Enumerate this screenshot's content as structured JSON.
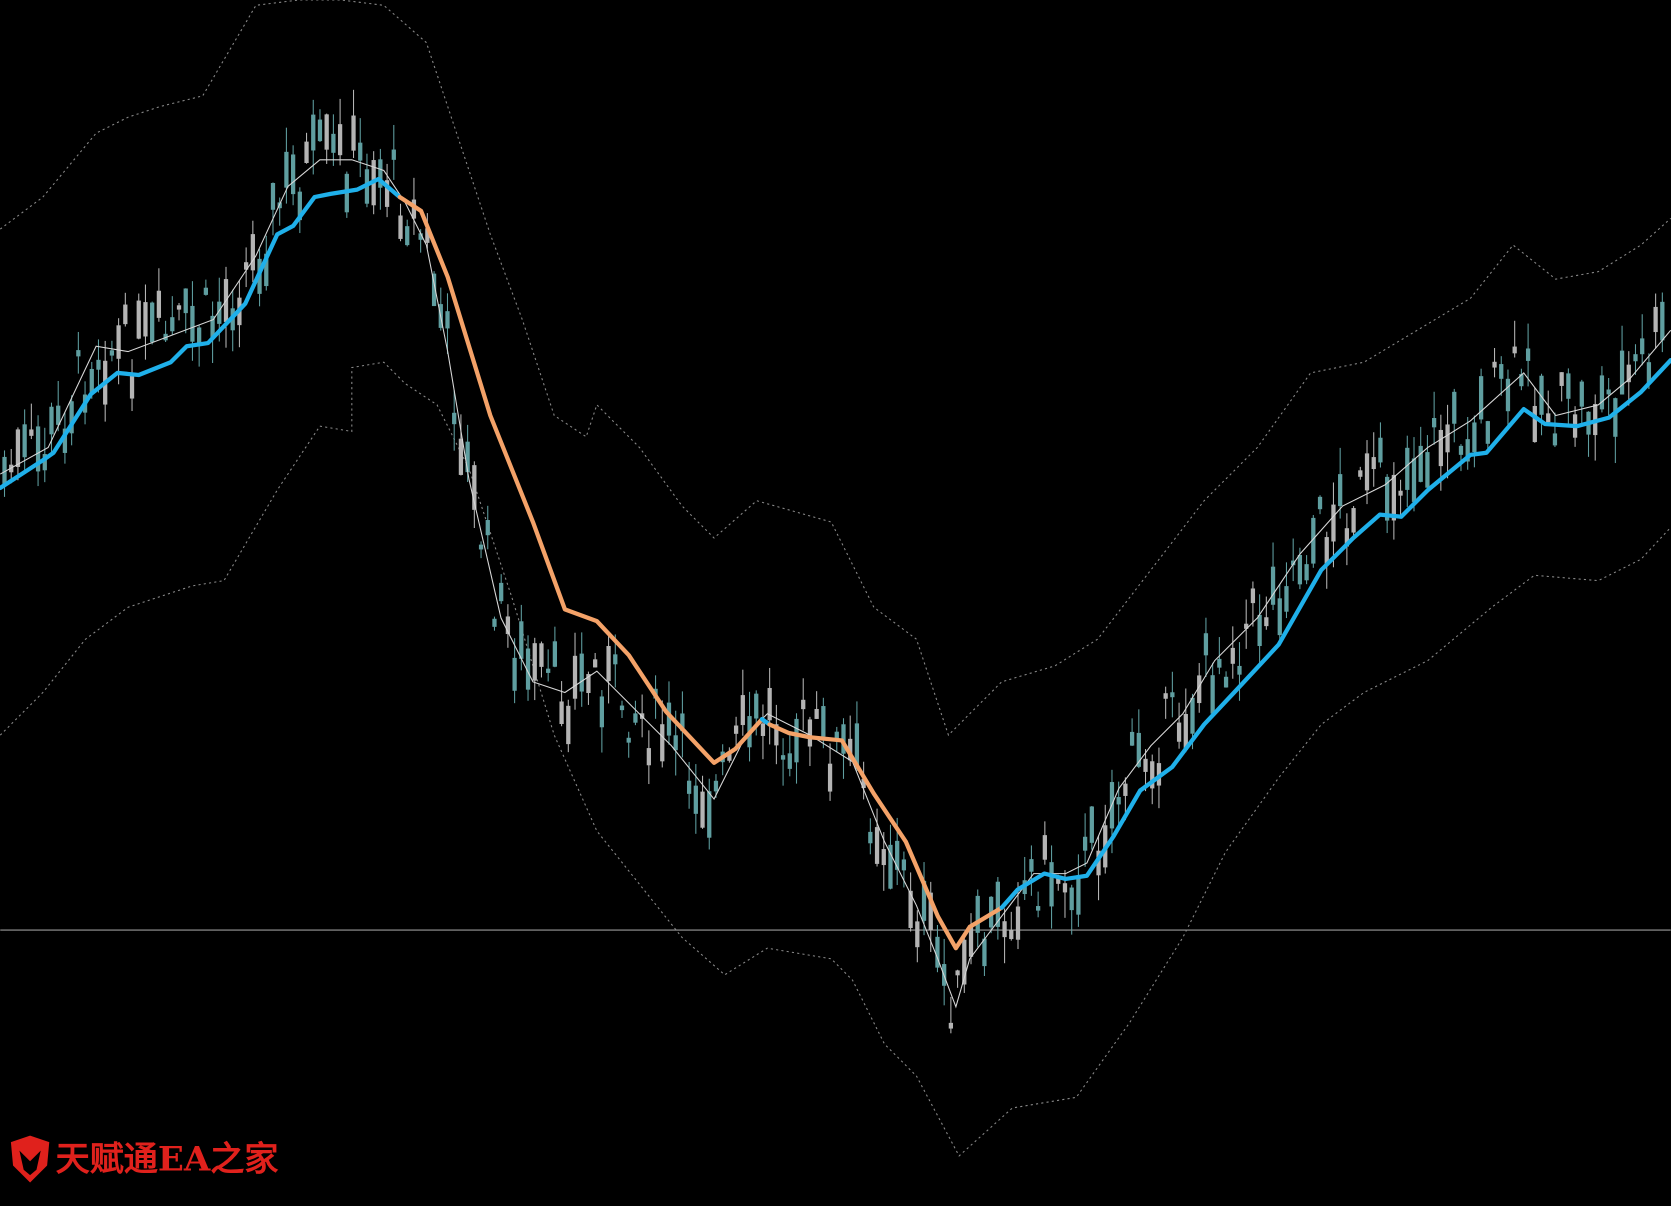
{
  "watermark": {
    "text": "天赋通EA之家"
  }
}
